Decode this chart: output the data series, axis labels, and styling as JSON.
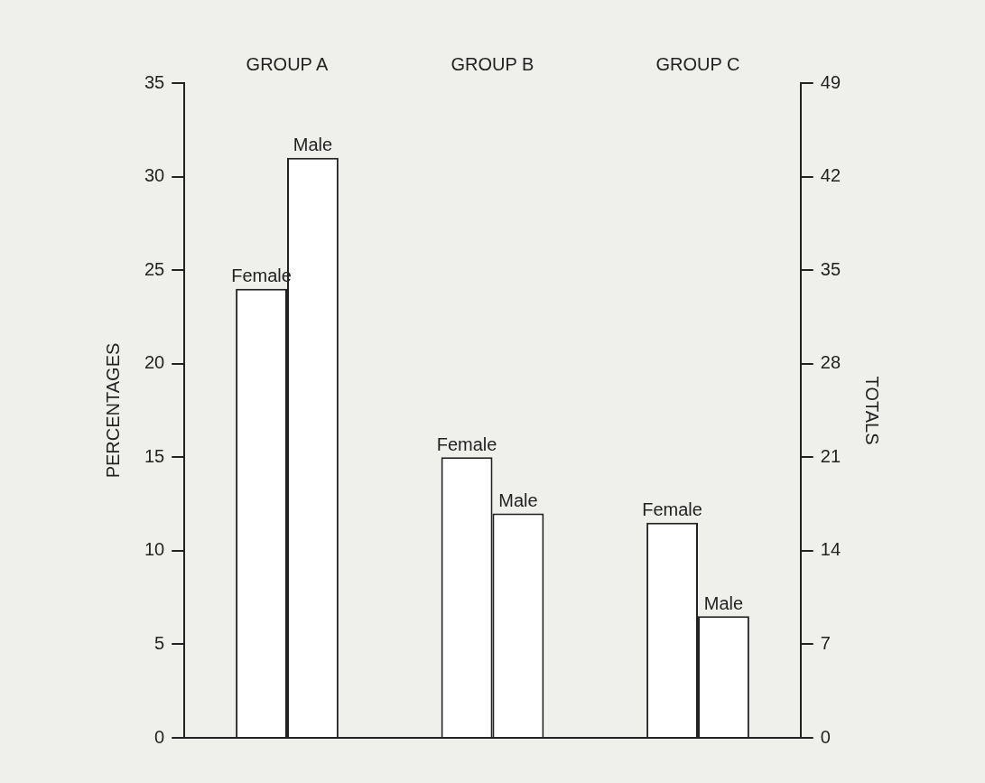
{
  "chart_data": {
    "type": "bar",
    "categories": [
      "GROUP A",
      "GROUP B",
      "GROUP C"
    ],
    "series": [
      {
        "name": "Female",
        "color": "#ffffff",
        "values": [
          24,
          15,
          11.5
        ]
      },
      {
        "name": "Male",
        "color": "#ffffff",
        "values": [
          31,
          12,
          6.5
        ]
      }
    ],
    "ylabel": "PERCENTAGES",
    "y2label": "TOTALS",
    "ylim": [
      0,
      35
    ],
    "yticks": [
      0,
      5,
      10,
      15,
      20,
      25,
      30,
      35
    ],
    "y2lim": [
      0,
      49
    ],
    "y2ticks": [
      0,
      7,
      14,
      21,
      28,
      35,
      42,
      49
    ],
    "grid": false,
    "legend": false
  }
}
